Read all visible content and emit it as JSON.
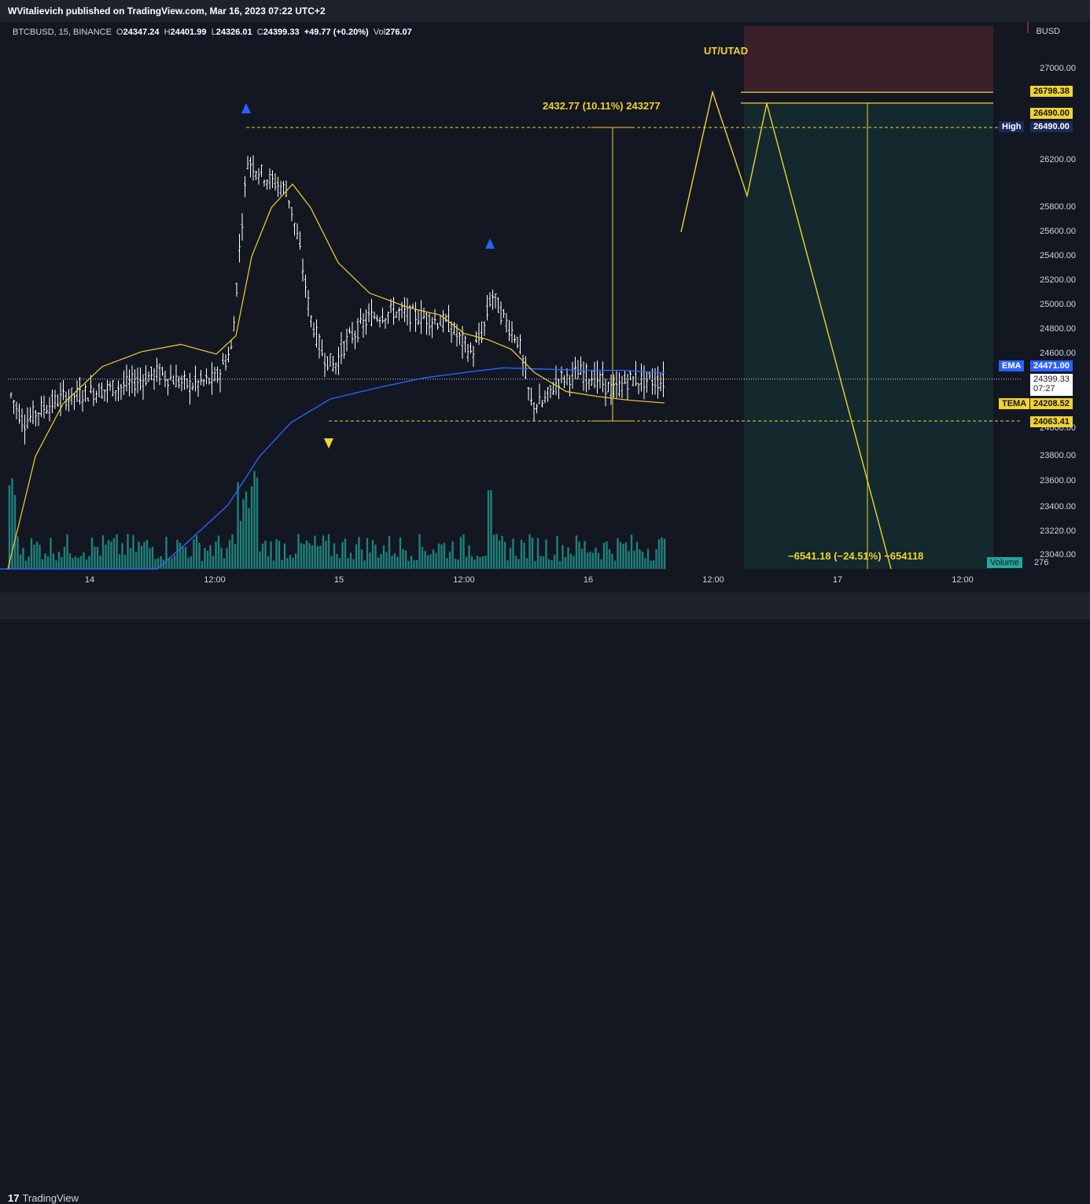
{
  "header": {
    "publisher_text": "WVitalievich published on TradingView.com, Mar 16, 2023 07:22 UTC+2"
  },
  "legend": {
    "symbol": "BTCBUSD, 15, BINANCE",
    "open_label": "O",
    "open": "24347.24",
    "high_label": "H",
    "high": "24401.99",
    "low_label": "L",
    "low": "24326.01",
    "close_label": "C",
    "close": "24399.33",
    "change": "+49.77 (+0.20%)",
    "vol_label": "Vol",
    "vol": "276.07"
  },
  "footer": {
    "brand": "TradingView"
  },
  "colors": {
    "background": "#131722",
    "candle": "#ffffff",
    "ema": "#2962ff",
    "tema": "#f0d232",
    "volume": "#26a69a",
    "target_zone": "#3b1f2b",
    "stop_zone": "#13292e",
    "annotation": "#f0d232"
  },
  "chart_data": {
    "type": "candlestick",
    "symbol": "BTCBUSD",
    "timeframe": "15",
    "exchange": "BINANCE",
    "currency": "BUSD",
    "ylim": [
      22960,
      27250
    ],
    "yticks": [
      "27000.00",
      "26200.00",
      "25800.00",
      "25600.00",
      "25400.00",
      "25200.00",
      "25000.00",
      "24800.00",
      "24600.00",
      "24000.00",
      "23800.00",
      "23600.00",
      "23400.00",
      "23220.00",
      "23040.00"
    ],
    "xticks": [
      "14",
      "12:00",
      "15",
      "12:00",
      "16",
      "12:00",
      "17",
      "12:00"
    ],
    "price_tags": [
      {
        "label": "",
        "value": "26798.38",
        "style": "yellow"
      },
      {
        "label": "",
        "value": "26490.00",
        "style": "yellow"
      },
      {
        "label": "High",
        "value": "26490.00",
        "style": "navy"
      },
      {
        "label": "EMA",
        "value": "24471.00",
        "style": "blue"
      },
      {
        "label": "",
        "value": "24399.33",
        "extra": "07:27",
        "style": "white"
      },
      {
        "label": "TEMA",
        "value": "24208.52",
        "style": "yellow"
      },
      {
        "label": "",
        "value": "24063.41",
        "style": "yellow"
      },
      {
        "label": "Volume",
        "value": "276",
        "style": "teal"
      }
    ],
    "levels": {
      "high": 26490.0,
      "low": 24063.41,
      "target": 26798.38
    },
    "annotations": {
      "utad": "UT/UTAD",
      "range_measure": "2432.77 (10.11%) 243277",
      "short_measure": "−6541.18 (−24.51%) −654118"
    },
    "ema_points": [
      [
        0,
        22960
      ],
      [
        200,
        22960
      ],
      [
        240,
        23150
      ],
      [
        290,
        23420
      ],
      [
        330,
        23800
      ],
      [
        370,
        24050
      ],
      [
        420,
        24240
      ],
      [
        480,
        24330
      ],
      [
        540,
        24410
      ],
      [
        600,
        24460
      ],
      [
        640,
        24490
      ],
      [
        690,
        24480
      ],
      [
        740,
        24470
      ],
      [
        790,
        24470
      ],
      [
        845,
        24450
      ]
    ],
    "tema_points": [
      [
        10,
        22960
      ],
      [
        25,
        23300
      ],
      [
        45,
        23800
      ],
      [
        80,
        24200
      ],
      [
        130,
        24500
      ],
      [
        180,
        24620
      ],
      [
        230,
        24680
      ],
      [
        275,
        24600
      ],
      [
        300,
        24750
      ],
      [
        320,
        25400
      ],
      [
        345,
        25800
      ],
      [
        372,
        26000
      ],
      [
        395,
        25800
      ],
      [
        430,
        25350
      ],
      [
        470,
        25100
      ],
      [
        520,
        24980
      ],
      [
        560,
        24920
      ],
      [
        590,
        24770
      ],
      [
        620,
        24720
      ],
      [
        650,
        24640
      ],
      [
        680,
        24450
      ],
      [
        720,
        24300
      ],
      [
        760,
        24260
      ],
      [
        800,
        24230
      ],
      [
        845,
        24208
      ]
    ],
    "projection_path": [
      [
        866,
        25600
      ],
      [
        906,
        26800
      ],
      [
        950,
        25900
      ],
      [
        975,
        26700
      ],
      [
        1133,
        22960
      ]
    ]
  }
}
